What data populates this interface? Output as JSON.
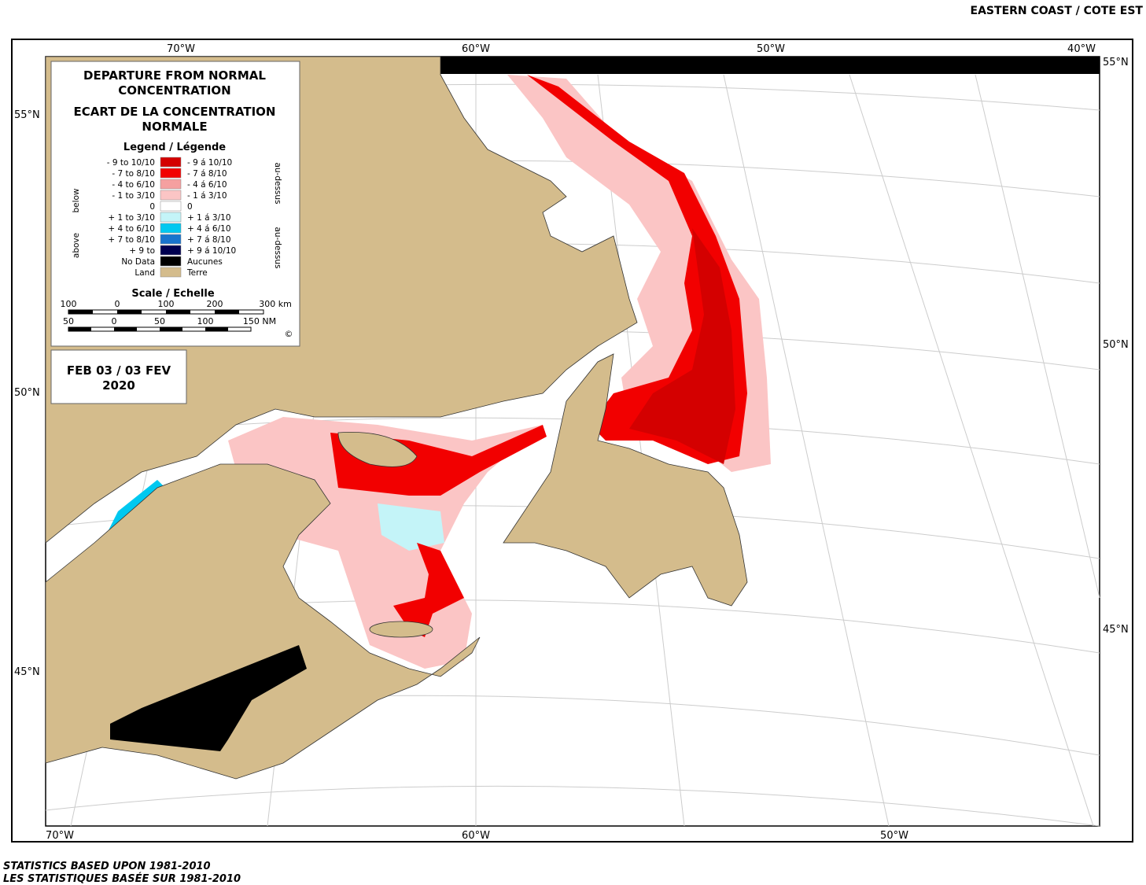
{
  "header": {
    "title": "EASTERN COAST / COTE EST"
  },
  "legend": {
    "title": [
      "DEPARTURE FROM NORMAL",
      "CONCENTRATION",
      "ECART DE LA CONCENTRATION",
      "NORMALE"
    ],
    "subtitle": "Legend / Légende",
    "items": [
      {
        "left": "- 9 to 10/10",
        "right": "- 9 á 10/10",
        "color": "#d40000"
      },
      {
        "left": "- 7 to 8/10",
        "right": "- 7 á 8/10",
        "color": "#f20000"
      },
      {
        "left": "- 4 to 6/10",
        "right": "- 4 á 6/10",
        "color": "#f5a0a0"
      },
      {
        "left": "- 1 to 3/10",
        "right": "- 1 á 3/10",
        "color": "#fbc5c5"
      },
      {
        "left": "0",
        "right": "0",
        "color": "#ffffff"
      },
      {
        "left": "+ 1 to 3/10",
        "right": "+ 1 á 3/10",
        "color": "#c4f4f8"
      },
      {
        "left": "+ 4 to 6/10",
        "right": "+ 4 á 6/10",
        "color": "#00c8f0"
      },
      {
        "left": "+ 7 to 8/10",
        "right": "+ 7 á 8/10",
        "color": "#1874cd"
      },
      {
        "left": "+ 9 to",
        "right": "+ 9 á 10/10",
        "color": "#000050"
      },
      {
        "left": "No Data",
        "right": "Aucunes",
        "color": "#000000"
      },
      {
        "left": "Land",
        "right": "Terre",
        "color": "#d4bc8c"
      }
    ],
    "side_left": [
      "below",
      "above"
    ],
    "side_right": [
      "au-dessus",
      "au-dessus"
    ],
    "scale_title": "Scale / Echelle",
    "scale_km": [
      "100",
      "0",
      "100",
      "200",
      "300 km"
    ],
    "scale_nm": [
      "50",
      "0",
      "50",
      "100",
      "150 NM"
    ],
    "copyright": "©"
  },
  "date": [
    "FEB 03 / 03 FEV",
    "2020"
  ],
  "axes": {
    "top": [
      "70°W",
      "60°W",
      "50°W",
      "40°W"
    ],
    "bottom": [
      "70°W",
      "60°W",
      "50°W"
    ],
    "left": [
      "55°N",
      "50°N",
      "45°N"
    ],
    "right": [
      "55°N",
      "50°N",
      "45°N"
    ]
  },
  "footer": [
    "STATISTICS BASED UPON 1981-2010",
    "LES STATISTIQUES BASÉE SUR 1981-2010"
  ]
}
